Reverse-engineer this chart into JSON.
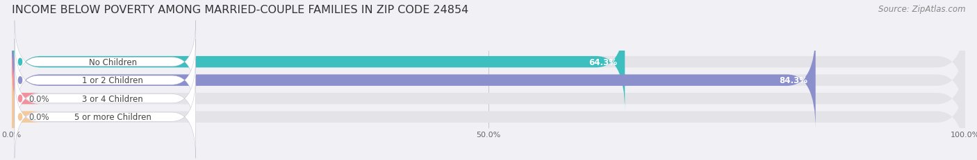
{
  "title": "INCOME BELOW POVERTY AMONG MARRIED-COUPLE FAMILIES IN ZIP CODE 24854",
  "source": "Source: ZipAtlas.com",
  "categories": [
    "No Children",
    "1 or 2 Children",
    "3 or 4 Children",
    "5 or more Children"
  ],
  "values": [
    64.3,
    84.3,
    0.0,
    0.0
  ],
  "bar_colors": [
    "#3dbfbf",
    "#8b8fcc",
    "#f4909e",
    "#f5c99a"
  ],
  "bar_bg_color": "#e4e4e8",
  "xlim": [
    0,
    100
  ],
  "xtick_labels": [
    "0.0%",
    "50.0%",
    "100.0%"
  ],
  "xtick_values": [
    0,
    50,
    100
  ],
  "title_fontsize": 11.5,
  "source_fontsize": 8.5,
  "label_fontsize": 8.5,
  "value_fontsize": 8.5,
  "bar_height": 0.62,
  "background_color": "#f0f0f5"
}
